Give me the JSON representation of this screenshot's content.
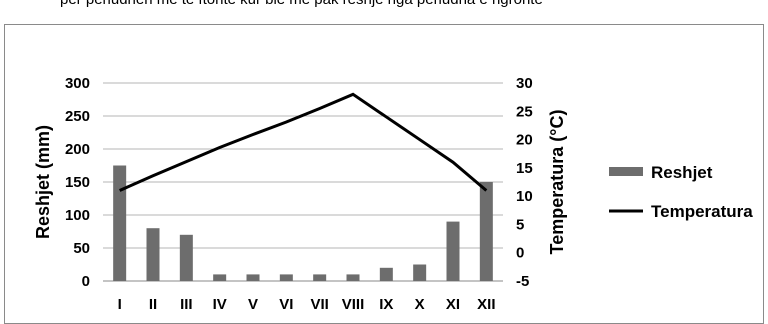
{
  "header": {
    "partial_text": "për periudhën më të ftohtë kur bie më pak reshje nga periudha e ngrohtë"
  },
  "chart_data": {
    "type": "bar+line",
    "categories": [
      "I",
      "II",
      "III",
      "IV",
      "V",
      "VI",
      "VII",
      "VIII",
      "IX",
      "X",
      "XI",
      "XII"
    ],
    "series": [
      {
        "name": "Reshjet",
        "type": "bar",
        "axis": "left",
        "values": [
          175,
          80,
          70,
          10,
          10,
          10,
          10,
          10,
          20,
          25,
          90,
          150
        ],
        "color": "#6d6d6d"
      },
      {
        "name": "Temperatura",
        "type": "line",
        "axis": "right",
        "values": [
          11,
          13.6,
          16.1,
          18.6,
          20.9,
          23.1,
          25.5,
          28,
          24,
          20,
          16,
          11
        ],
        "color": "#000000"
      }
    ],
    "left_axis": {
      "label": "Reshjet (mm)",
      "min": 0,
      "max": 300,
      "ticks": [
        "0",
        "50",
        "100",
        "150",
        "200",
        "250",
        "300"
      ]
    },
    "right_axis": {
      "label": "Temperatura (°C)",
      "min": -5,
      "max": 30,
      "ticks": [
        "-5",
        "0",
        "5",
        "10",
        "15",
        "20",
        "25",
        "30"
      ]
    },
    "grid": true,
    "legend": {
      "position": "right",
      "entries": [
        "Reshjet",
        "Temperatura"
      ]
    }
  }
}
